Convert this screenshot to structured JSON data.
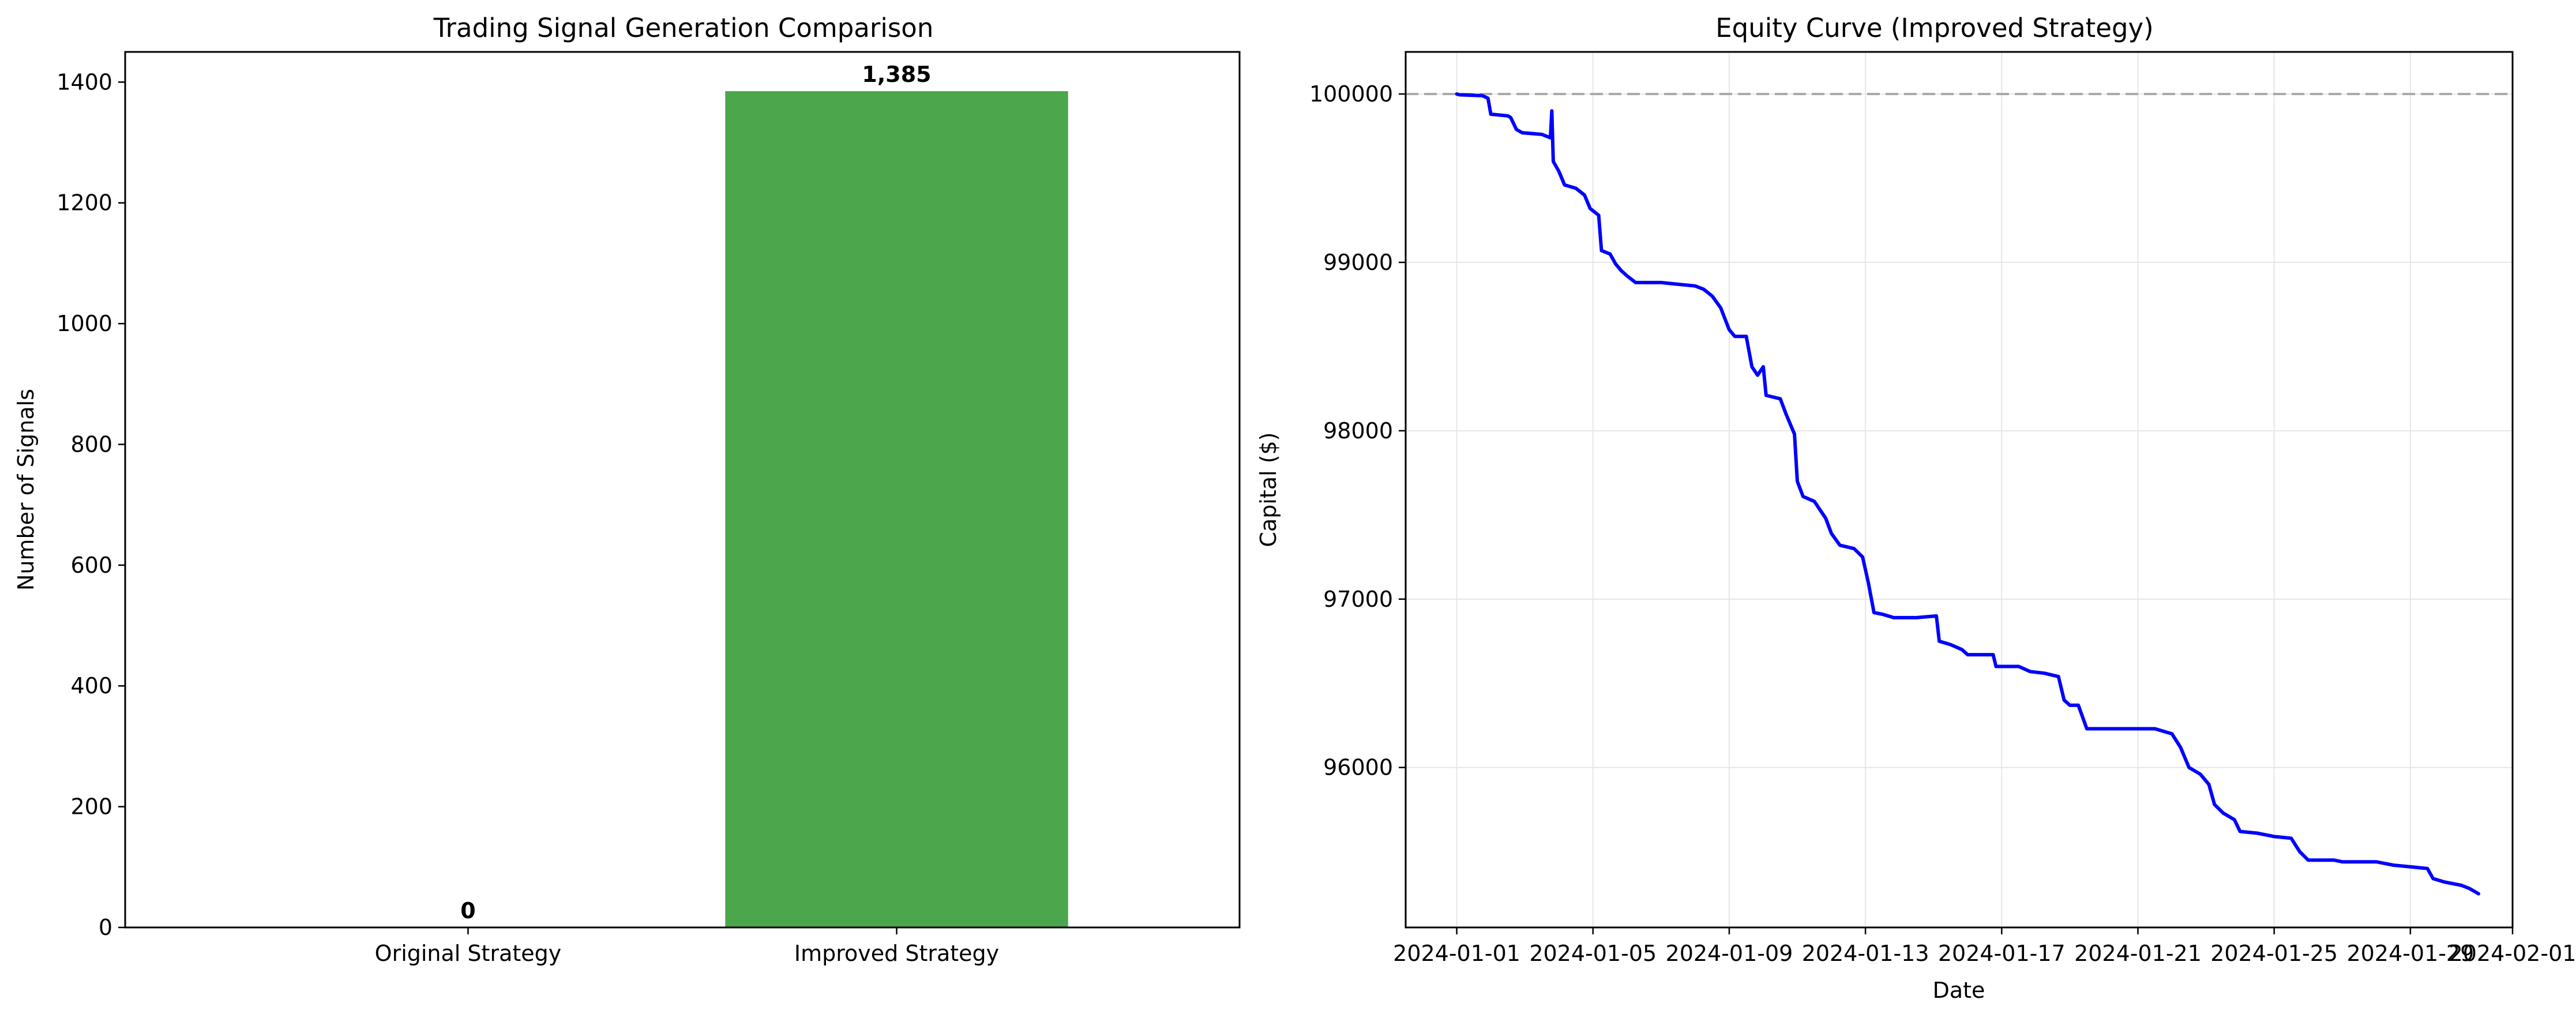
{
  "chart_data": [
    {
      "type": "bar",
      "title": "Trading Signal Generation Comparison",
      "xlabel": "",
      "ylabel": "Number of Signals",
      "categories": [
        "Original Strategy",
        "Improved Strategy"
      ],
      "values": [
        0,
        1385
      ],
      "data_labels": [
        "0",
        "1,385"
      ],
      "colors": [
        "#4ca64c",
        "#4ca64c"
      ],
      "ylim": [
        0,
        1450
      ],
      "yticks": [
        0,
        200,
        400,
        600,
        800,
        1000,
        1200,
        1400
      ],
      "grid": false
    },
    {
      "type": "line",
      "title": "Equity Curve (Improved Strategy)",
      "xlabel": "Date",
      "ylabel": "Capital ($)",
      "xlim": [
        "2023-12-30T12:00",
        "2024-02-01T00:00"
      ],
      "ylim": [
        95050,
        100250
      ],
      "xticks": [
        "2024-01-01",
        "2024-01-05",
        "2024-01-09",
        "2024-01-13",
        "2024-01-17",
        "2024-01-21",
        "2024-01-25",
        "2024-01-29",
        "2024-02-01"
      ],
      "yticks": [
        96000,
        97000,
        98000,
        99000,
        100000
      ],
      "grid": true,
      "reference_line": {
        "y": 100000,
        "style": "dashed",
        "color": "#aaaaaa"
      },
      "series": [
        {
          "color": "#0000ff",
          "points": [
            [
              "2024-01-01T00:00",
              100000
            ],
            [
              "2024-01-01T02:00",
              99995
            ],
            [
              "2024-01-01T18:00",
              99990
            ],
            [
              "2024-01-01T22:00",
              99975
            ],
            [
              "2024-01-02T00:00",
              99880
            ],
            [
              "2024-01-02T12:00",
              99870
            ],
            [
              "2024-01-02T14:00",
              99860
            ],
            [
              "2024-01-02T18:00",
              99790
            ],
            [
              "2024-01-02T22:00",
              99770
            ],
            [
              "2024-01-03T12:00",
              99760
            ],
            [
              "2024-01-03T18:00",
              99740
            ],
            [
              "2024-01-03T19:00",
              99900
            ],
            [
              "2024-01-03T20:00",
              99600
            ],
            [
              "2024-01-04T00:00",
              99540
            ],
            [
              "2024-01-04T04:00",
              99460
            ],
            [
              "2024-01-04T12:00",
              99440
            ],
            [
              "2024-01-04T18:00",
              99400
            ],
            [
              "2024-01-04T22:00",
              99320
            ],
            [
              "2024-01-05T04:00",
              99280
            ],
            [
              "2024-01-05T06:00",
              99070
            ],
            [
              "2024-01-05T12:00",
              99050
            ],
            [
              "2024-01-05T16:00",
              98990
            ],
            [
              "2024-01-05T20:00",
              98950
            ],
            [
              "2024-01-06T00:00",
              98920
            ],
            [
              "2024-01-06T06:00",
              98880
            ],
            [
              "2024-01-07T00:00",
              98880
            ],
            [
              "2024-01-07T12:00",
              98870
            ],
            [
              "2024-01-08T00:00",
              98860
            ],
            [
              "2024-01-08T06:00",
              98840
            ],
            [
              "2024-01-08T12:00",
              98800
            ],
            [
              "2024-01-08T18:00",
              98730
            ],
            [
              "2024-01-09T00:00",
              98600
            ],
            [
              "2024-01-09T04:00",
              98560
            ],
            [
              "2024-01-09T12:00",
              98560
            ],
            [
              "2024-01-09T16:00",
              98380
            ],
            [
              "2024-01-09T20:00",
              98330
            ],
            [
              "2024-01-10T00:00",
              98380
            ],
            [
              "2024-01-10T02:00",
              98210
            ],
            [
              "2024-01-10T12:00",
              98190
            ],
            [
              "2024-01-10T16:00",
              98100
            ],
            [
              "2024-01-10T22:00",
              97980
            ],
            [
              "2024-01-11T00:00",
              97700
            ],
            [
              "2024-01-11T04:00",
              97610
            ],
            [
              "2024-01-11T12:00",
              97580
            ],
            [
              "2024-01-11T20:00",
              97480
            ],
            [
              "2024-01-12T00:00",
              97390
            ],
            [
              "2024-01-12T06:00",
              97320
            ],
            [
              "2024-01-12T16:00",
              97300
            ],
            [
              "2024-01-12T22:00",
              97250
            ],
            [
              "2024-01-13T02:00",
              97100
            ],
            [
              "2024-01-13T06:00",
              96920
            ],
            [
              "2024-01-13T12:00",
              96910
            ],
            [
              "2024-01-13T20:00",
              96890
            ],
            [
              "2024-01-14T12:00",
              96890
            ],
            [
              "2024-01-15T02:00",
              96900
            ],
            [
              "2024-01-15T04:00",
              96750
            ],
            [
              "2024-01-15T12:00",
              96730
            ],
            [
              "2024-01-15T20:00",
              96700
            ],
            [
              "2024-01-16T00:00",
              96670
            ],
            [
              "2024-01-16T18:00",
              96670
            ],
            [
              "2024-01-16T20:00",
              96600
            ],
            [
              "2024-01-17T12:00",
              96600
            ],
            [
              "2024-01-17T20:00",
              96570
            ],
            [
              "2024-01-18T06:00",
              96560
            ],
            [
              "2024-01-18T16:00",
              96540
            ],
            [
              "2024-01-18T20:00",
              96400
            ],
            [
              "2024-01-19T00:00",
              96370
            ],
            [
              "2024-01-19T06:00",
              96370
            ],
            [
              "2024-01-19T12:00",
              96230
            ],
            [
              "2024-01-20T12:00",
              96230
            ],
            [
              "2024-01-21T12:00",
              96230
            ],
            [
              "2024-01-22T00:00",
              96200
            ],
            [
              "2024-01-22T06:00",
              96120
            ],
            [
              "2024-01-22T12:00",
              96000
            ],
            [
              "2024-01-22T20:00",
              95960
            ],
            [
              "2024-01-23T02:00",
              95900
            ],
            [
              "2024-01-23T06:00",
              95780
            ],
            [
              "2024-01-23T12:00",
              95730
            ],
            [
              "2024-01-23T20:00",
              95690
            ],
            [
              "2024-01-24T00:00",
              95620
            ],
            [
              "2024-01-24T12:00",
              95610
            ],
            [
              "2024-01-24T18:00",
              95600
            ],
            [
              "2024-01-25T00:00",
              95590
            ],
            [
              "2024-01-25T12:00",
              95580
            ],
            [
              "2024-01-25T18:00",
              95500
            ],
            [
              "2024-01-26T00:00",
              95450
            ],
            [
              "2024-01-26T18:00",
              95450
            ],
            [
              "2024-01-27T00:00",
              95440
            ],
            [
              "2024-01-28T00:00",
              95440
            ],
            [
              "2024-01-28T06:00",
              95430
            ],
            [
              "2024-01-28T12:00",
              95420
            ],
            [
              "2024-01-29T00:00",
              95410
            ],
            [
              "2024-01-29T12:00",
              95400
            ],
            [
              "2024-01-29T16:00",
              95340
            ],
            [
              "2024-01-30T00:00",
              95320
            ],
            [
              "2024-01-30T12:00",
              95300
            ],
            [
              "2024-01-30T18:00",
              95280
            ],
            [
              "2024-01-31T00:00",
              95250
            ]
          ]
        }
      ]
    }
  ]
}
